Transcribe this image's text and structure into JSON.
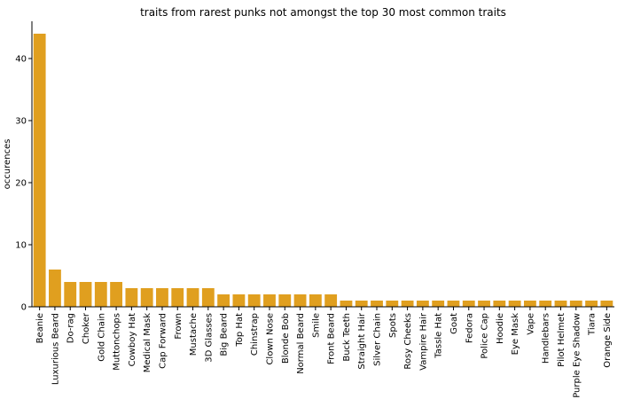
{
  "chart_data": {
    "type": "bar",
    "title": "traits from rarest punks not amongst the top 30 most common traits",
    "xlabel": "",
    "ylabel": "occurences",
    "ylim": [
      0,
      46
    ],
    "yticks": [
      0,
      10,
      20,
      30,
      40
    ],
    "grid": false,
    "bar_color": "#e09f1f",
    "categories": [
      "Beanie",
      "Luxurious Beard",
      "Do-rag",
      "Choker",
      "Gold Chain",
      "Muttonchops",
      "Cowboy Hat",
      "Medical Mask",
      "Cap Forward",
      "Frown",
      "Mustache",
      "3D Glasses",
      "Big Beard",
      "Top Hat",
      "Chinstrap",
      "Clown Nose",
      "Blonde Bob",
      "Normal Beard",
      "Smile",
      "Front Beard",
      "Buck Teeth",
      "Straight Hair",
      "Silver Chain",
      "Spots",
      "Rosy Cheeks",
      "Vampire Hair",
      "Tassle Hat",
      "Goat",
      "Fedora",
      "Police Cap",
      "Hoodie",
      "Eye Mask",
      "Vape",
      "Handlebars",
      "Pilot Helmet",
      "Purple Eye Shadow",
      "Tiara",
      "Orange Side"
    ],
    "values": [
      44,
      6,
      4,
      4,
      4,
      4,
      3,
      3,
      3,
      3,
      3,
      3,
      2,
      2,
      2,
      2,
      2,
      2,
      2,
      2,
      1,
      1,
      1,
      1,
      1,
      1,
      1,
      1,
      1,
      1,
      1,
      1,
      1,
      1,
      1,
      1,
      1,
      1
    ]
  }
}
